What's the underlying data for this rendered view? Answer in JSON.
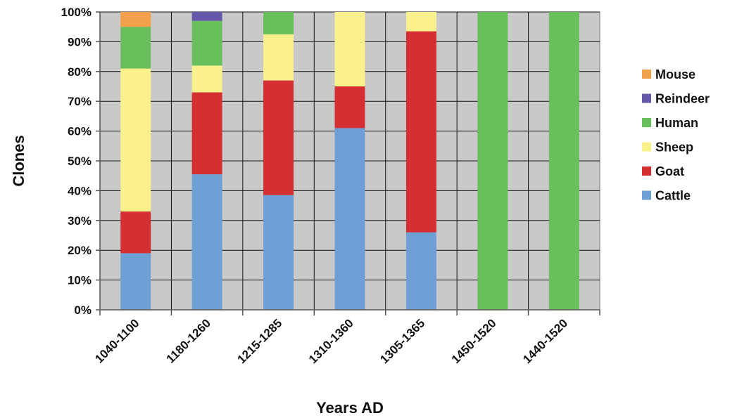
{
  "chart_data": {
    "type": "bar",
    "stacked": true,
    "normalized": true,
    "title": "",
    "xlabel": "Years AD",
    "ylabel": "Clones",
    "ylim": [
      0,
      100
    ],
    "y_ticks": [
      "0%",
      "10%",
      "20%",
      "30%",
      "40%",
      "50%",
      "60%",
      "70%",
      "80%",
      "90%",
      "100%"
    ],
    "grid": true,
    "legend_position": "right",
    "background_color": "#c9c9c9",
    "categories": [
      "1040-1100",
      "1180-1260",
      "1215-1285",
      "1310-1360",
      "1305-1365",
      "1450-1520",
      "1440-1520"
    ],
    "series": [
      {
        "name": "Cattle",
        "color": "#6fa0d5",
        "values": [
          19,
          45.5,
          38.5,
          61,
          26,
          0,
          0
        ]
      },
      {
        "name": "Goat",
        "color": "#d43034",
        "values": [
          14,
          27.5,
          38.5,
          14,
          67.5,
          0,
          0
        ]
      },
      {
        "name": "Sheep",
        "color": "#faf08c",
        "values": [
          48,
          9,
          15.5,
          25,
          6.5,
          0,
          0
        ]
      },
      {
        "name": "Human",
        "color": "#69bf5b",
        "values": [
          14,
          15,
          7.5,
          0,
          0,
          100,
          100
        ]
      },
      {
        "name": "Reindeer",
        "color": "#6657a8",
        "values": [
          0,
          3,
          0,
          0,
          0,
          0,
          0
        ]
      },
      {
        "name": "Mouse",
        "color": "#f2a04a",
        "values": [
          5,
          0,
          0,
          0,
          0,
          0,
          0
        ]
      }
    ]
  }
}
